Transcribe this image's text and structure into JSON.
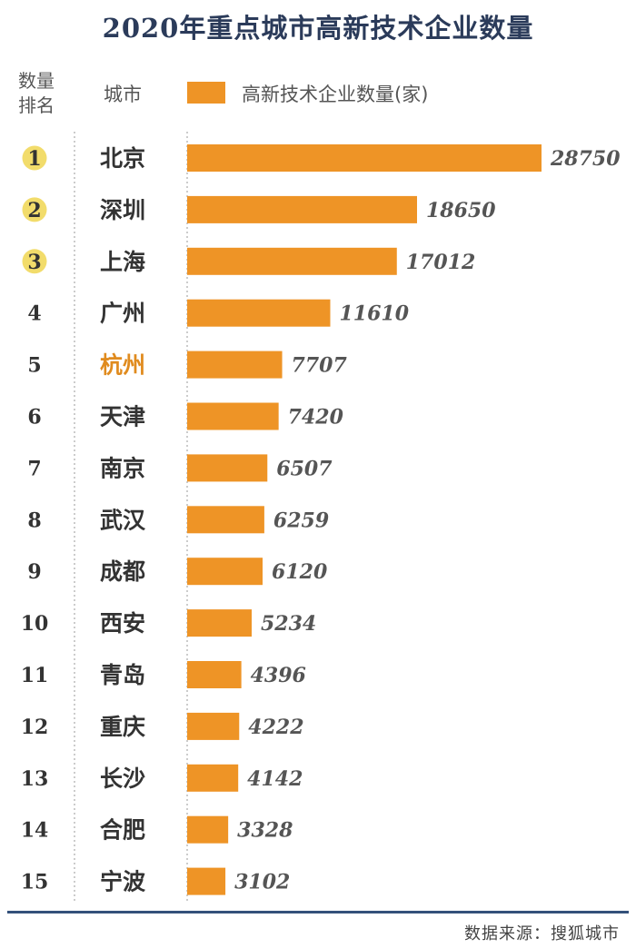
{
  "chart_data": {
    "type": "bar",
    "orientation": "horizontal",
    "title": "2020年重点城市高新技术企业数量",
    "rank_header": [
      "数量",
      "排名"
    ],
    "city_header": "城市",
    "legend": "高新技术企业数量(家)",
    "ranks": [
      "1",
      "2",
      "3",
      "4",
      "5",
      "6",
      "7",
      "8",
      "9",
      "10",
      "11",
      "12",
      "13",
      "14",
      "15"
    ],
    "categories": [
      "北京",
      "深圳",
      "上海",
      "广州",
      "杭州",
      "天津",
      "南京",
      "武汉",
      "成都",
      "西安",
      "青岛",
      "重庆",
      "长沙",
      "合肥",
      "宁波"
    ],
    "values": [
      28750,
      18650,
      17012,
      11610,
      7707,
      7420,
      6507,
      6259,
      6120,
      5234,
      4396,
      4222,
      4142,
      3328,
      3102
    ],
    "highlight_category": "杭州",
    "bar_color": "#ee9426",
    "highlight_color": "#ee9426",
    "medal_color": "#f2dc6b",
    "grid": false
  },
  "source": "数据来源：搜狐城市"
}
